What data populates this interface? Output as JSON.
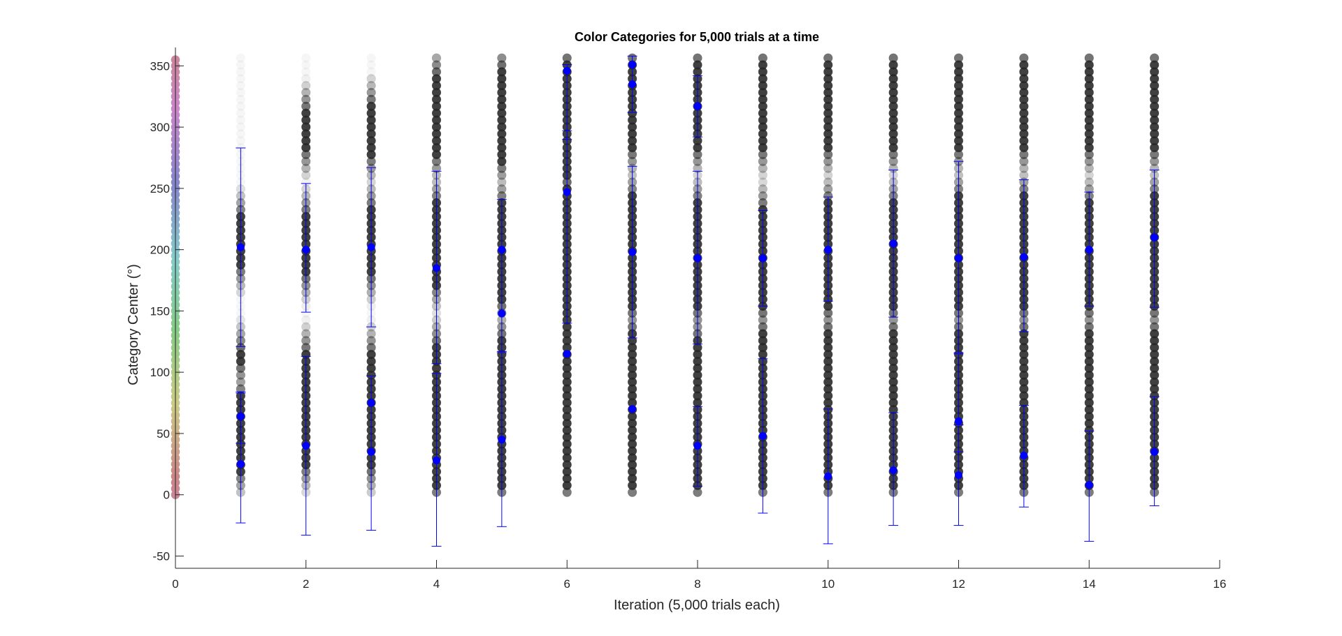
{
  "chart_data": {
    "type": "scatter",
    "title": "Color Categories for 5,000 trials at a time",
    "xlabel": "Iteration (5,000 trials each)",
    "ylabel": "Category Center (°)",
    "xlim": [
      0,
      16
    ],
    "ylim": [
      -60,
      365
    ],
    "xticks": [
      0,
      2,
      4,
      6,
      8,
      10,
      12,
      14,
      16
    ],
    "yticks": [
      -50,
      0,
      50,
      100,
      150,
      200,
      250,
      300,
      350
    ],
    "grid": false,
    "color_wheel_x": 0,
    "color_wheel_hue_step_deg": 5,
    "gray_dot_step_deg": 5.625,
    "gray_dot_max_deg": 360,
    "darkness_by_iteration": {
      "description_free": true,
      "iterations": [
        1,
        2,
        3,
        4,
        5,
        6,
        7,
        8,
        9,
        10,
        11,
        12,
        13,
        14,
        15
      ],
      "dark_bands": [
        [
          [
            18,
            82
          ],
          [
            105,
            120
          ],
          [
            185,
            228
          ]
        ],
        [
          [
            22,
            118
          ],
          [
            178,
            230
          ],
          [
            280,
            315
          ]
        ],
        [
          [
            20,
            118
          ],
          [
            178,
            235
          ],
          [
            275,
            320
          ]
        ],
        [
          [
            5,
            125
          ],
          [
            170,
            240
          ],
          [
            275,
            345
          ]
        ],
        [
          [
            5,
            130
          ],
          [
            155,
            240
          ],
          [
            270,
            350
          ]
        ],
        [
          [
            5,
            255
          ],
          [
            260,
            355
          ]
        ],
        [
          [
            5,
            135
          ],
          [
            150,
            245
          ],
          [
            280,
            355
          ]
        ],
        [
          [
            5,
            130
          ],
          [
            150,
            240
          ],
          [
            280,
            355
          ]
        ],
        [
          [
            5,
            135
          ],
          [
            150,
            235
          ],
          [
            280,
            355
          ]
        ],
        [
          [
            5,
            135
          ],
          [
            150,
            240
          ],
          [
            280,
            355
          ]
        ],
        [
          [
            5,
            135
          ],
          [
            150,
            240
          ],
          [
            280,
            355
          ]
        ],
        [
          [
            5,
            135
          ],
          [
            150,
            245
          ],
          [
            280,
            355
          ]
        ],
        [
          [
            5,
            135
          ],
          [
            150,
            245
          ],
          [
            280,
            355
          ]
        ],
        [
          [
            5,
            135
          ],
          [
            150,
            240
          ],
          [
            280,
            355
          ]
        ],
        [
          [
            5,
            135
          ],
          [
            150,
            245
          ],
          [
            280,
            355
          ]
        ]
      ]
    },
    "means": [
      {
        "x": 1,
        "y": [
          25,
          64,
          202
        ]
      },
      {
        "x": 2,
        "y": [
          40,
          200
        ]
      },
      {
        "x": 3,
        "y": [
          35,
          75,
          202
        ]
      },
      {
        "x": 4,
        "y": [
          28,
          185
        ]
      },
      {
        "x": 5,
        "y": [
          45,
          148,
          200
        ]
      },
      {
        "x": 6,
        "y": [
          115,
          247,
          346
        ]
      },
      {
        "x": 7,
        "y": [
          70,
          198,
          335,
          351
        ]
      },
      {
        "x": 8,
        "y": [
          40,
          193,
          317
        ]
      },
      {
        "x": 9,
        "y": [
          48,
          193
        ]
      },
      {
        "x": 10,
        "y": [
          15,
          200
        ]
      },
      {
        "x": 11,
        "y": [
          20,
          205
        ]
      },
      {
        "x": 12,
        "y": [
          16,
          60,
          193
        ]
      },
      {
        "x": 13,
        "y": [
          32,
          194
        ]
      },
      {
        "x": 14,
        "y": [
          8,
          200
        ]
      },
      {
        "x": 15,
        "y": [
          35,
          210
        ]
      }
    ],
    "error_bars": [
      {
        "x": 1,
        "ranges": [
          [
            -23,
            83
          ],
          [
            121,
            283
          ],
          [
            42,
            84
          ]
        ]
      },
      {
        "x": 2,
        "ranges": [
          [
            -33,
            113
          ],
          [
            149,
            254
          ]
        ]
      },
      {
        "x": 3,
        "ranges": [
          [
            -29,
            97
          ],
          [
            137,
            267
          ]
        ]
      },
      {
        "x": 4,
        "ranges": [
          [
            -42,
            99
          ],
          [
            107,
            264
          ]
        ]
      },
      {
        "x": 5,
        "ranges": [
          [
            -26,
            116
          ],
          [
            117,
            241
          ]
        ]
      },
      {
        "x": 6,
        "ranges": [
          [
            140,
            297
          ],
          [
            290,
            351
          ]
        ]
      },
      {
        "x": 7,
        "ranges": [
          [
            312,
            358
          ],
          [
            128,
            268
          ]
        ]
      },
      {
        "x": 8,
        "ranges": [
          [
            7,
            72
          ],
          [
            123,
            264
          ],
          [
            292,
            342
          ]
        ]
      },
      {
        "x": 9,
        "ranges": [
          [
            -15,
            111
          ],
          [
            154,
            232
          ]
        ]
      },
      {
        "x": 10,
        "ranges": [
          [
            -40,
            70
          ],
          [
            158,
            243
          ]
        ]
      },
      {
        "x": 11,
        "ranges": [
          [
            -25,
            67
          ],
          [
            145,
            265
          ]
        ]
      },
      {
        "x": 12,
        "ranges": [
          [
            -25,
            57
          ],
          [
            35,
            115
          ],
          [
            116,
            272
          ]
        ]
      },
      {
        "x": 13,
        "ranges": [
          [
            -10,
            73
          ],
          [
            133,
            257
          ]
        ]
      },
      {
        "x": 14,
        "ranges": [
          [
            -38,
            52
          ],
          [
            154,
            247
          ]
        ]
      },
      {
        "x": 15,
        "ranges": [
          [
            -9,
            80
          ],
          [
            153,
            265
          ]
        ]
      }
    ],
    "colors": {
      "gray_dark": "#262626",
      "mean": "#0000ff",
      "errorbar": "#0000ff",
      "axis": "#262626"
    }
  }
}
